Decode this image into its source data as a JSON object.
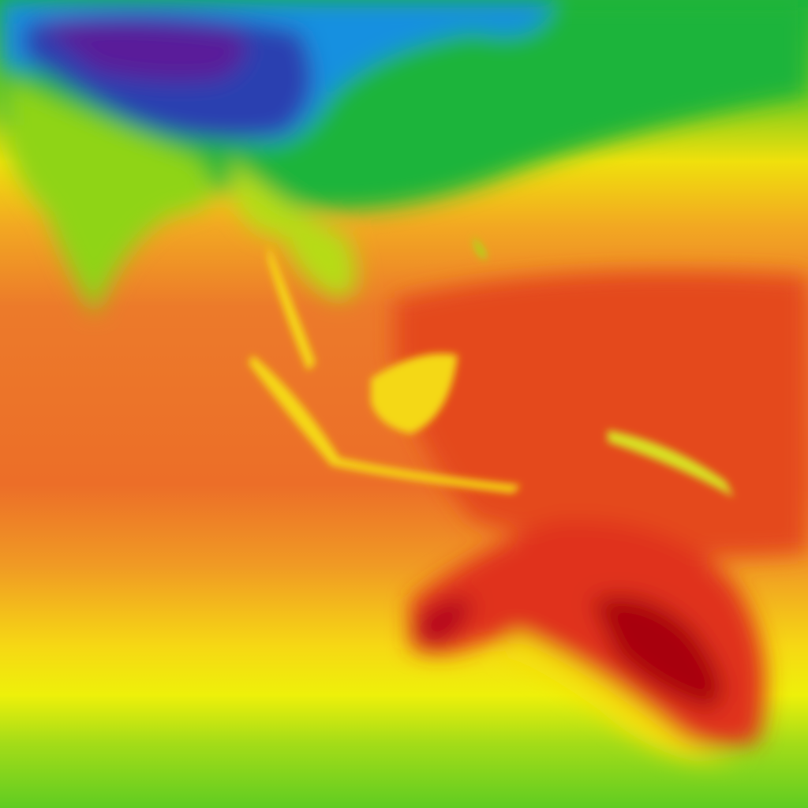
{
  "map": {
    "type": "temperature-heatmap",
    "colormap": {
      "very_cold": "#5a1a9a",
      "cold": "#2a3fb0",
      "cool": "#1590e0",
      "mild": "#1cb43a",
      "warm_mild": "#8fd418",
      "warm": "#f4ec0a",
      "hot": "#f0a020",
      "very_hot": "#ec6a28",
      "extreme": "#e2361e",
      "max": "#a80010"
    }
  }
}
